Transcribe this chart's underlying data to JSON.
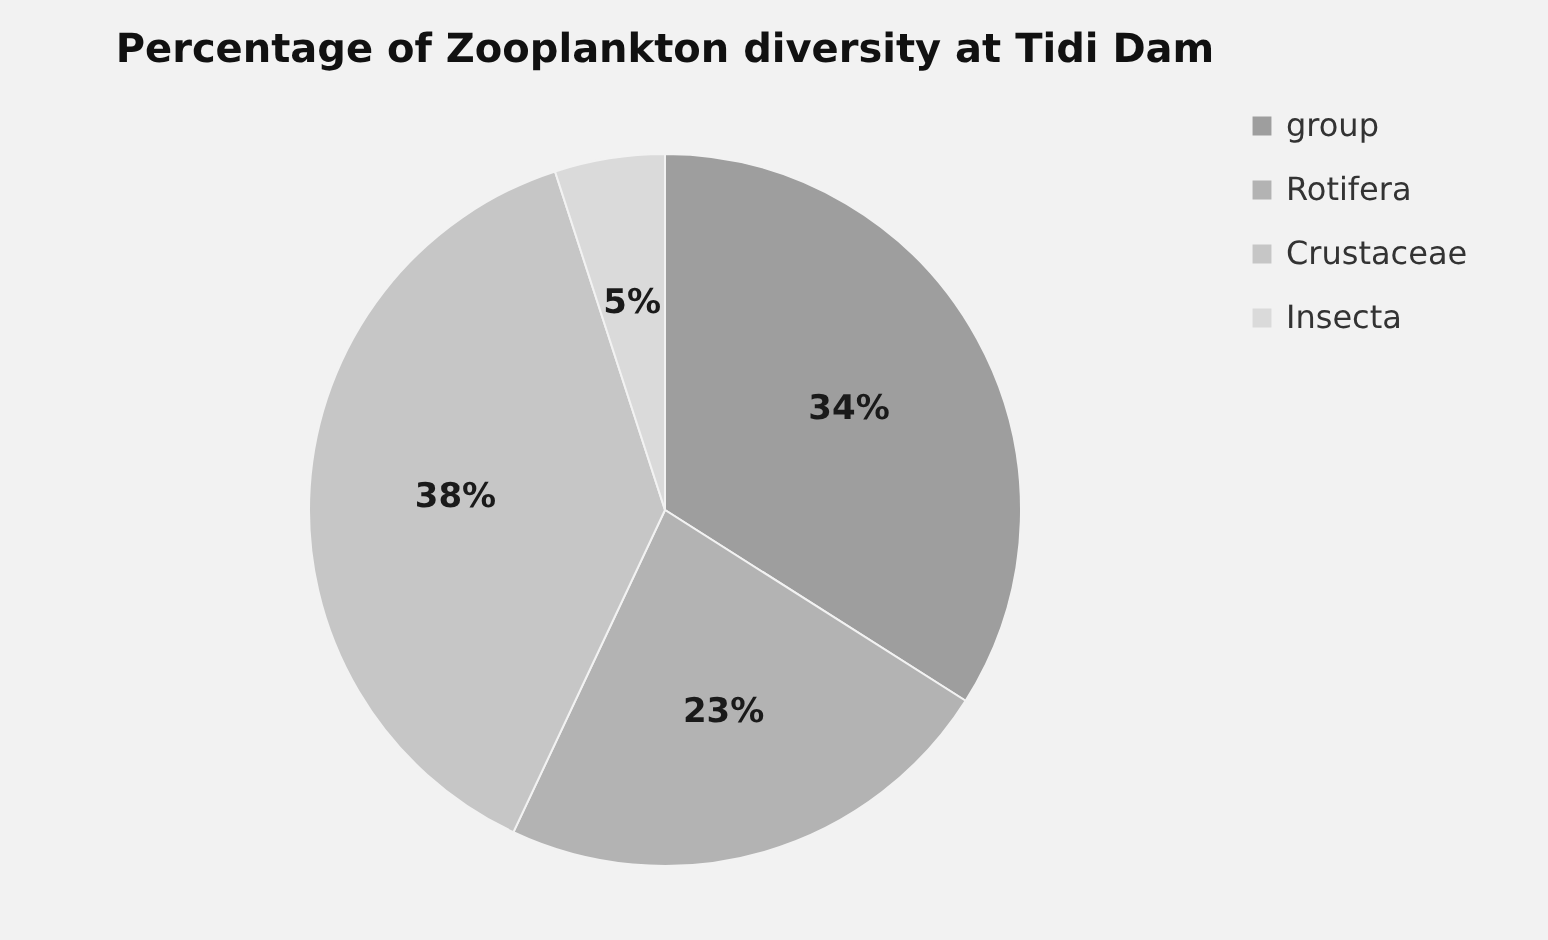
{
  "chart_data": {
    "type": "pie",
    "title": "Percentage of Zooplankton diversity at Tidi Dam",
    "categories": [
      "group",
      "Rotifera",
      "Crustaceae",
      "Insecta"
    ],
    "values": [
      34,
      23,
      38,
      5
    ],
    "value_labels": [
      "34%",
      "23%",
      "38%",
      "5%"
    ],
    "colors": [
      "#9e9e9e",
      "#b3b3b3",
      "#c6c6c6",
      "#dadada"
    ],
    "legend": "right"
  }
}
